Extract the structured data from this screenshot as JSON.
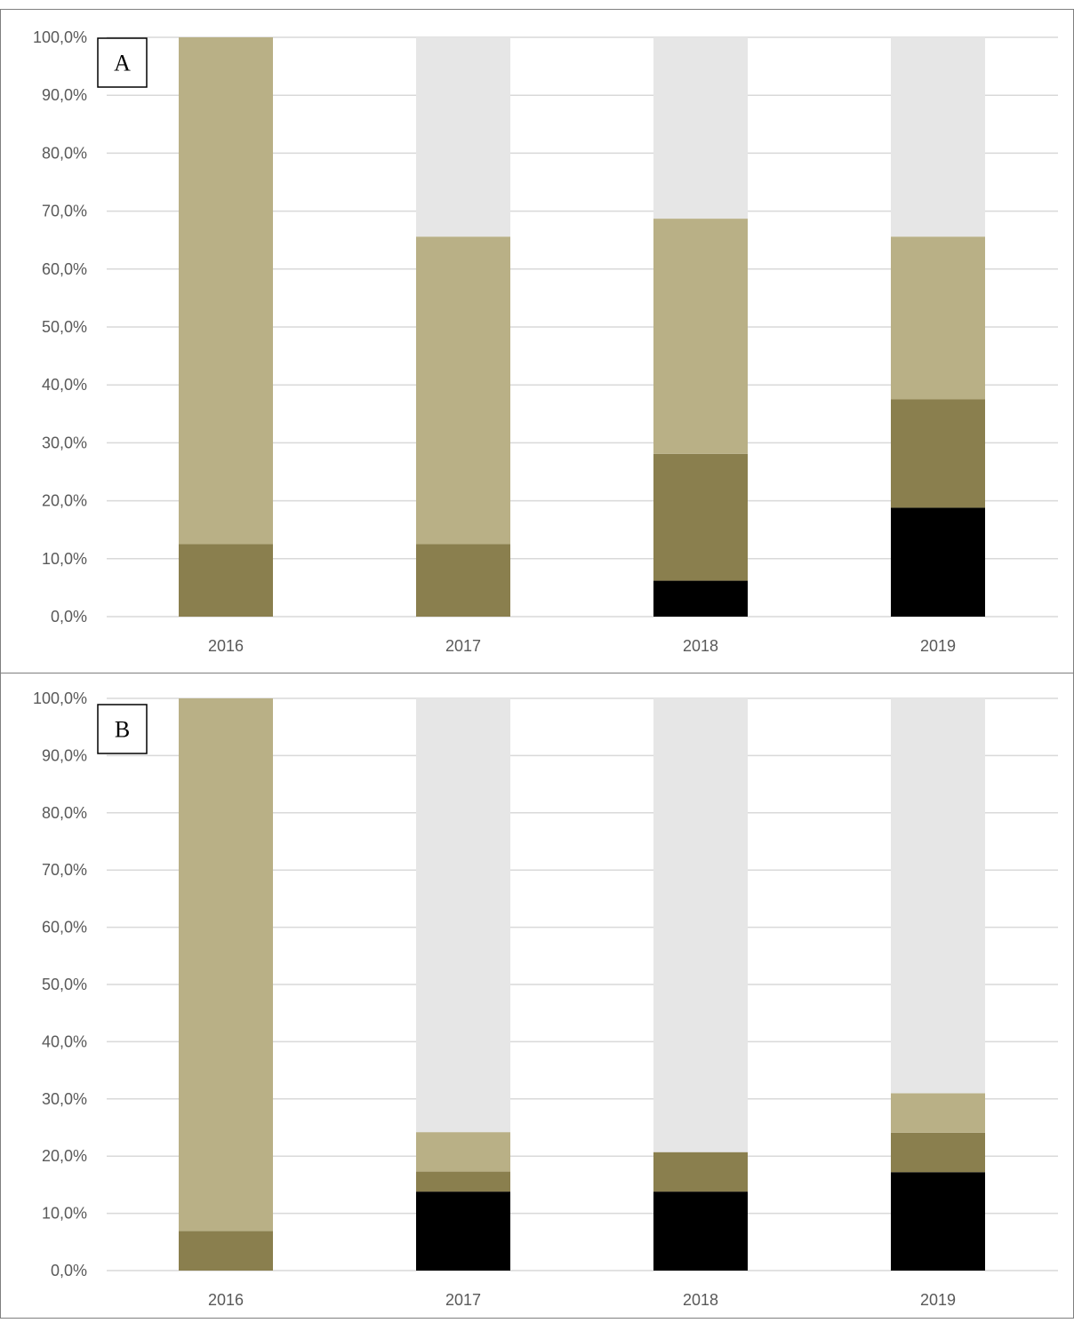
{
  "chart_data": [
    {
      "type": "bar",
      "stacked": true,
      "panel_label": "A",
      "categories": [
        "2016",
        "2017",
        "2018",
        "2019"
      ],
      "ylim": [
        0,
        100
      ],
      "yticks": [
        "0,0%",
        "10,0%",
        "20,0%",
        "30,0%",
        "40,0%",
        "50,0%",
        "60,0%",
        "70,0%",
        "80,0%",
        "90,0%",
        "100,0%"
      ],
      "grid": true,
      "legend": "none",
      "series": [
        {
          "color": "#000000",
          "values": [
            0,
            0,
            6.2,
            18.8
          ]
        },
        {
          "color": "#8a7f4e",
          "values": [
            12.5,
            12.5,
            21.9,
            18.7
          ]
        },
        {
          "color": "#b9b086",
          "values": [
            87.5,
            53.1,
            40.6,
            28.1
          ]
        },
        {
          "color": "#e6e6e6",
          "values": [
            0,
            34.4,
            31.3,
            34.4
          ]
        }
      ]
    },
    {
      "type": "bar",
      "stacked": true,
      "panel_label": "B",
      "categories": [
        "2016",
        "2017",
        "2018",
        "2019"
      ],
      "ylim": [
        0,
        100
      ],
      "yticks": [
        "0,0%",
        "10,0%",
        "20,0%",
        "30,0%",
        "40,0%",
        "50,0%",
        "60,0%",
        "70,0%",
        "80,0%",
        "90,0%",
        "100,0%"
      ],
      "grid": true,
      "legend": "none",
      "series": [
        {
          "color": "#000000",
          "values": [
            0,
            13.8,
            13.8,
            17.2
          ]
        },
        {
          "color": "#8a7f4e",
          "values": [
            6.9,
            3.5,
            6.9,
            6.9
          ]
        },
        {
          "color": "#b9b086",
          "values": [
            93.1,
            6.9,
            0,
            6.9
          ]
        },
        {
          "color": "#e6e6e6",
          "values": [
            0,
            75.8,
            79.3,
            69.0
          ]
        }
      ]
    }
  ]
}
